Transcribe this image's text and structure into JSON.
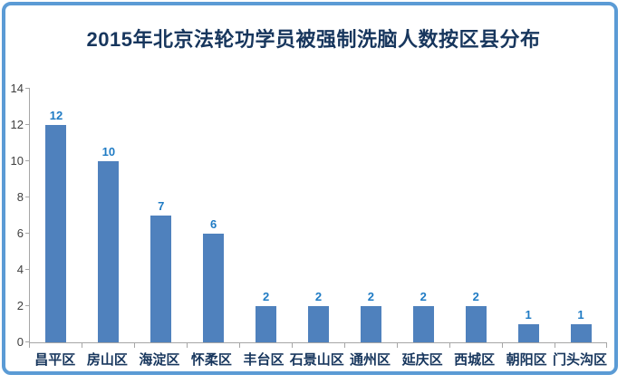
{
  "frame": {
    "border_color": "#5B9BD5"
  },
  "chart_data": {
    "type": "bar",
    "title": "2015年北京法轮功学员被强制洗脑人数按区县分布",
    "categories": [
      "昌平区",
      "房山区",
      "海淀区",
      "怀柔区",
      "丰台区",
      "石景山区",
      "通州区",
      "延庆区",
      "西城区",
      "朝阳区",
      "门头沟区"
    ],
    "values": [
      12,
      10,
      7,
      6,
      2,
      2,
      2,
      2,
      2,
      1,
      1
    ],
    "data_labels": [
      12,
      10,
      7,
      6,
      2,
      2,
      2,
      2,
      2,
      1,
      1
    ],
    "xlabel": "",
    "ylabel": "",
    "ylim": [
      0,
      14
    ],
    "yticks": [
      0,
      2,
      4,
      6,
      8,
      10,
      12,
      14
    ],
    "grid": false,
    "legend": "none",
    "colors": {
      "bar": "#4F81BD",
      "value_label": "#1F7BC4",
      "title": "#17365D",
      "category_label": "#17365D",
      "axis_text": "#3F3F3F",
      "axis_line": "#A6A6A6"
    }
  }
}
